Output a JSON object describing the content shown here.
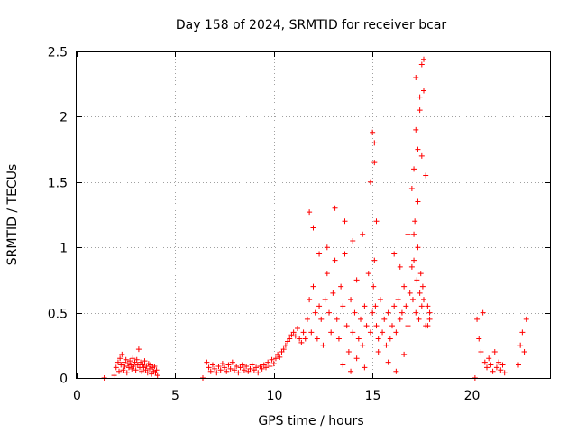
{
  "chart_data": {
    "type": "scatter",
    "title": "Day 158 of 2024, SRMTID for receiver bcar",
    "xlabel": "GPS time / hours",
    "ylabel": "SRMTID / TECUs",
    "xlim": [
      0,
      24
    ],
    "ylim": [
      0,
      2.5
    ],
    "xticks": [
      0,
      5,
      10,
      15,
      20
    ],
    "xtick_labels": [
      "0",
      "5",
      "10",
      "15",
      "20"
    ],
    "yticks": [
      0,
      0.5,
      1,
      1.5,
      2,
      2.5
    ],
    "ytick_labels": [
      "0",
      "0.5",
      "1",
      "1.5",
      "2",
      "2.5"
    ],
    "grid": true,
    "marker": "+",
    "color": "#ff0000",
    "series": [
      {
        "name": "SRMTID",
        "x": [
          1.4,
          1.9,
          2.0,
          2.1,
          2.15,
          2.2,
          2.25,
          2.3,
          2.35,
          2.4,
          2.45,
          2.5,
          2.55,
          2.6,
          2.65,
          2.7,
          2.75,
          2.8,
          2.85,
          2.9,
          2.95,
          3.0,
          3.05,
          3.1,
          3.15,
          3.2,
          3.25,
          3.3,
          3.35,
          3.4,
          3.45,
          3.5,
          3.55,
          3.6,
          3.65,
          3.7,
          3.75,
          3.8,
          3.85,
          3.9,
          3.95,
          4.0,
          4.05,
          4.1,
          6.4,
          6.6,
          6.7,
          6.8,
          6.9,
          7.0,
          7.1,
          7.2,
          7.3,
          7.4,
          7.5,
          7.6,
          7.7,
          7.8,
          7.9,
          8.0,
          8.1,
          8.2,
          8.3,
          8.4,
          8.5,
          8.6,
          8.7,
          8.8,
          8.9,
          9.0,
          9.1,
          9.2,
          9.3,
          9.4,
          9.5,
          9.6,
          9.7,
          9.8,
          9.9,
          10.0,
          10.1,
          10.2,
          10.3,
          10.4,
          10.5,
          10.6,
          10.7,
          10.8,
          10.9,
          11.0,
          11.1,
          11.2,
          11.3,
          11.4,
          11.5,
          11.6,
          11.7,
          11.8,
          11.9,
          12.0,
          12.1,
          12.2,
          12.3,
          12.4,
          12.5,
          12.6,
          12.7,
          12.8,
          12.9,
          13.0,
          13.1,
          13.2,
          13.3,
          13.4,
          13.5,
          13.6,
          13.7,
          13.8,
          13.9,
          14.0,
          14.1,
          14.2,
          14.3,
          14.4,
          14.5,
          14.6,
          14.7,
          14.8,
          14.9,
          15.0,
          15.05,
          15.1,
          15.15,
          15.2,
          15.3,
          15.4,
          15.5,
          15.6,
          15.7,
          15.8,
          15.9,
          16.0,
          16.1,
          16.2,
          16.3,
          16.4,
          16.5,
          16.6,
          16.7,
          16.8,
          16.9,
          17.0,
          17.05,
          17.1,
          17.15,
          17.2,
          17.25,
          17.3,
          17.35,
          17.4,
          17.45,
          17.5,
          17.55,
          17.6,
          17.7,
          17.8,
          17.9,
          20.2,
          20.3,
          20.4,
          20.5,
          20.6,
          20.7,
          20.8,
          20.9,
          21.0,
          21.1,
          21.2,
          21.3,
          21.4,
          21.5,
          21.6,
          21.7,
          22.4,
          22.5,
          22.6,
          22.7,
          22.8,
          11.8,
          12.0,
          12.3,
          12.7,
          13.1,
          13.6,
          14.0,
          14.5,
          14.9,
          15.1,
          15.0,
          15.1,
          15.2,
          16.1,
          16.4,
          16.8,
          17.0,
          17.1,
          17.2,
          17.3,
          17.4,
          17.5,
          17.5,
          17.6,
          17.7,
          17.6,
          17.4,
          17.2,
          17.3,
          17.1,
          13.5,
          13.9,
          14.2,
          14.6,
          15.3,
          15.8,
          16.2,
          16.6,
          17.8,
          17.9
        ],
        "y": [
          0.0,
          0.02,
          0.08,
          0.12,
          0.05,
          0.15,
          0.1,
          0.18,
          0.06,
          0.12,
          0.09,
          0.14,
          0.04,
          0.11,
          0.08,
          0.13,
          0.1,
          0.07,
          0.15,
          0.09,
          0.12,
          0.06,
          0.14,
          0.1,
          0.22,
          0.08,
          0.12,
          0.05,
          0.1,
          0.08,
          0.13,
          0.06,
          0.09,
          0.04,
          0.11,
          0.07,
          0.1,
          0.03,
          0.08,
          0.05,
          0.09,
          0.04,
          0.06,
          0.02,
          0.0,
          0.12,
          0.08,
          0.05,
          0.1,
          0.07,
          0.04,
          0.09,
          0.06,
          0.11,
          0.08,
          0.05,
          0.1,
          0.07,
          0.12,
          0.06,
          0.09,
          0.04,
          0.08,
          0.1,
          0.06,
          0.09,
          0.05,
          0.07,
          0.1,
          0.06,
          0.08,
          0.04,
          0.09,
          0.07,
          0.1,
          0.08,
          0.12,
          0.09,
          0.14,
          0.11,
          0.15,
          0.18,
          0.16,
          0.2,
          0.22,
          0.25,
          0.28,
          0.3,
          0.33,
          0.35,
          0.32,
          0.38,
          0.3,
          0.27,
          0.35,
          0.3,
          0.45,
          0.6,
          0.35,
          0.7,
          0.5,
          0.3,
          0.55,
          0.45,
          0.25,
          0.6,
          0.8,
          0.5,
          0.35,
          0.65,
          0.9,
          0.45,
          0.3,
          0.7,
          0.55,
          0.95,
          0.4,
          0.2,
          0.6,
          0.35,
          0.5,
          0.75,
          0.3,
          0.45,
          0.25,
          0.55,
          0.4,
          0.8,
          0.35,
          0.5,
          0.7,
          0.9,
          0.55,
          0.4,
          0.3,
          0.6,
          0.35,
          0.45,
          0.25,
          0.5,
          0.3,
          0.4,
          0.55,
          0.35,
          0.6,
          0.45,
          0.5,
          0.7,
          0.55,
          0.4,
          0.65,
          0.85,
          0.6,
          0.9,
          1.2,
          0.5,
          0.75,
          1.0,
          0.45,
          0.65,
          0.8,
          0.55,
          0.7,
          0.6,
          0.4,
          0.55,
          0.5,
          0.0,
          0.45,
          0.3,
          0.2,
          0.5,
          0.12,
          0.08,
          0.15,
          0.1,
          0.05,
          0.2,
          0.08,
          0.12,
          0.06,
          0.1,
          0.04,
          0.1,
          0.25,
          0.35,
          0.2,
          0.45,
          1.27,
          1.15,
          0.95,
          1.0,
          1.3,
          1.2,
          1.05,
          1.1,
          1.5,
          1.8,
          1.88,
          1.65,
          1.2,
          0.95,
          0.85,
          1.1,
          1.45,
          1.6,
          1.9,
          1.35,
          2.05,
          2.4,
          1.7,
          2.2,
          1.55,
          2.44,
          2.15,
          2.3,
          1.75,
          1.1,
          0.1,
          0.05,
          0.15,
          0.08,
          0.2,
          0.12,
          0.05,
          0.18,
          0.4,
          0.45
        ]
      }
    ]
  }
}
